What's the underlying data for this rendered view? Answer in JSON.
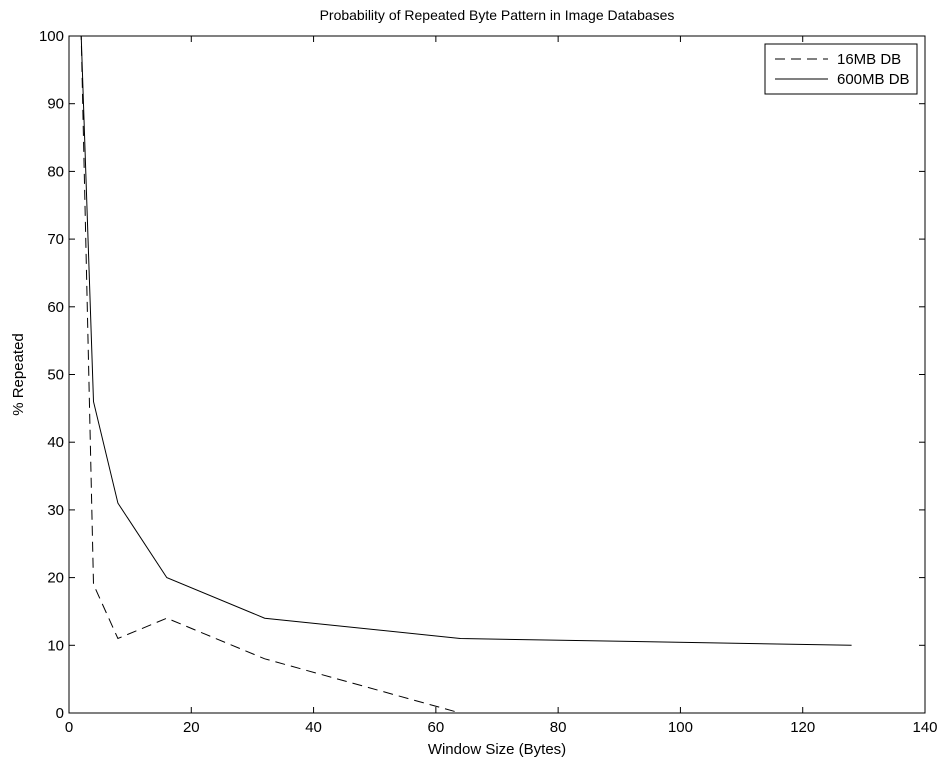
{
  "chart_data": {
    "type": "line",
    "title": "Probability of Repeated Byte Pattern in Image Databases",
    "xlabel": "Window Size (Bytes)",
    "ylabel": "% Repeated",
    "xlim": [
      0,
      140
    ],
    "ylim": [
      0,
      100
    ],
    "xticks": [
      0,
      20,
      40,
      60,
      80,
      100,
      120,
      140
    ],
    "yticks": [
      0,
      10,
      20,
      30,
      40,
      50,
      60,
      70,
      80,
      90,
      100
    ],
    "grid": false,
    "legend_position": "top-right",
    "series": [
      {
        "name": "16MB DB",
        "line_style": "dashed",
        "color": "#000000",
        "x": [
          1,
          2,
          4,
          8,
          16,
          32,
          64,
          128
        ],
        "y": [
          100,
          100,
          19,
          11,
          14,
          8,
          0,
          0
        ]
      },
      {
        "name": "600MB DB",
        "line_style": "solid",
        "color": "#000000",
        "x": [
          1,
          2,
          4,
          8,
          16,
          32,
          64,
          128
        ],
        "y": [
          100,
          100,
          46,
          31,
          20,
          14,
          11,
          10
        ]
      }
    ]
  }
}
